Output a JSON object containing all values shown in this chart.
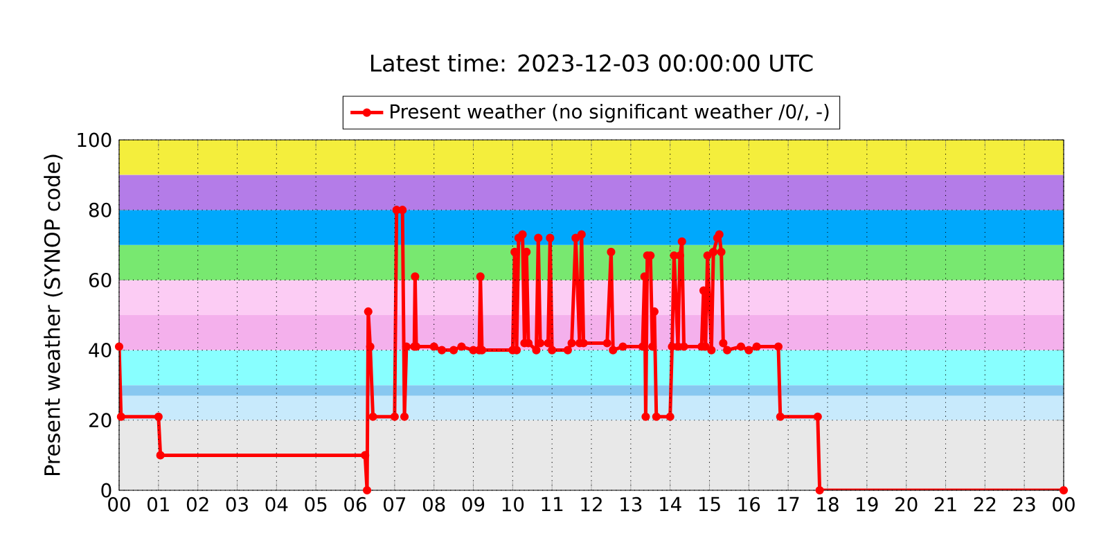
{
  "chart_data": {
    "type": "line",
    "title": "Latest time: 2023-12-03 00:00:00 UTC",
    "ylabel": "Present weather (SYNOP code)",
    "xlim": [
      0,
      24
    ],
    "ylim": [
      0,
      100
    ],
    "xticks": [
      {
        "value": 0,
        "label": "00"
      },
      {
        "value": 1,
        "label": "01"
      },
      {
        "value": 2,
        "label": "02"
      },
      {
        "value": 3,
        "label": "03"
      },
      {
        "value": 4,
        "label": "04"
      },
      {
        "value": 5,
        "label": "05"
      },
      {
        "value": 6,
        "label": "06"
      },
      {
        "value": 7,
        "label": "07"
      },
      {
        "value": 8,
        "label": "08"
      },
      {
        "value": 9,
        "label": "09"
      },
      {
        "value": 10,
        "label": "10"
      },
      {
        "value": 11,
        "label": "11"
      },
      {
        "value": 12,
        "label": "12"
      },
      {
        "value": 13,
        "label": "13"
      },
      {
        "value": 14,
        "label": "14"
      },
      {
        "value": 15,
        "label": "15"
      },
      {
        "value": 16,
        "label": "16"
      },
      {
        "value": 17,
        "label": "17"
      },
      {
        "value": 18,
        "label": "18"
      },
      {
        "value": 19,
        "label": "19"
      },
      {
        "value": 20,
        "label": "20"
      },
      {
        "value": 21,
        "label": "21"
      },
      {
        "value": 22,
        "label": "22"
      },
      {
        "value": 23,
        "label": "23"
      },
      {
        "value": 24,
        "label": "00"
      }
    ],
    "yticks": [
      0,
      20,
      40,
      60,
      80,
      100
    ],
    "grid": true,
    "legend": "top",
    "marker": "circle",
    "line_style": "solid",
    "bands": [
      {
        "axis": "y",
        "from": 0,
        "to": 20,
        "color": "#e8e8e8"
      },
      {
        "axis": "y",
        "from": 20,
        "to": 27,
        "color": "#c8eafc"
      },
      {
        "axis": "y",
        "from": 27,
        "to": 30,
        "color": "#88c8f0"
      },
      {
        "axis": "y",
        "from": 30,
        "to": 40,
        "color": "#88ffff"
      },
      {
        "axis": "y",
        "from": 40,
        "to": 50,
        "color": "#f4b0ec"
      },
      {
        "axis": "y",
        "from": 50,
        "to": 60,
        "color": "#fcccf4"
      },
      {
        "axis": "y",
        "from": 60,
        "to": 70,
        "color": "#78e870"
      },
      {
        "axis": "y",
        "from": 70,
        "to": 80,
        "color": "#00a8fc"
      },
      {
        "axis": "y",
        "from": 80,
        "to": 90,
        "color": "#b47ce8"
      },
      {
        "axis": "y",
        "from": 90,
        "to": 100,
        "color": "#f4ee3c"
      }
    ],
    "series": [
      {
        "name": "Present weather (no significant weather /0/, -)",
        "color": "#ff0000",
        "x": [
          0.0,
          0.05,
          1.0,
          1.05,
          6.25,
          6.3,
          6.33,
          6.38,
          6.45,
          7.0,
          7.05,
          7.2,
          7.25,
          7.3,
          7.5,
          7.52,
          7.55,
          8.0,
          8.2,
          8.5,
          8.7,
          9.0,
          9.15,
          9.18,
          9.22,
          10.0,
          10.05,
          10.1,
          10.15,
          10.25,
          10.3,
          10.35,
          10.4,
          10.6,
          10.65,
          10.7,
          10.9,
          10.95,
          11.0,
          11.4,
          11.5,
          11.6,
          11.7,
          11.75,
          11.8,
          12.4,
          12.5,
          12.55,
          12.8,
          13.3,
          13.35,
          13.38,
          13.42,
          13.5,
          13.55,
          13.6,
          13.65,
          14.0,
          14.05,
          14.1,
          14.2,
          14.25,
          14.3,
          14.35,
          14.8,
          14.85,
          14.9,
          14.95,
          15.05,
          15.1,
          15.2,
          15.25,
          15.3,
          15.35,
          15.45,
          15.8,
          16.0,
          16.2,
          16.75,
          16.8,
          17.75,
          17.8,
          24.0
        ],
        "values": [
          41,
          21,
          21,
          10,
          10,
          0,
          51,
          41,
          21,
          21,
          80,
          80,
          21,
          41,
          41,
          61,
          41,
          41,
          40,
          40,
          41,
          40,
          40,
          61,
          40,
          40,
          68,
          40,
          72,
          73,
          42,
          68,
          42,
          40,
          72,
          42,
          42,
          72,
          40,
          40,
          42,
          72,
          42,
          73,
          42,
          42,
          68,
          40,
          41,
          41,
          61,
          21,
          67,
          67,
          41,
          51,
          21,
          21,
          41,
          67,
          41,
          67,
          71,
          41,
          41,
          57,
          41,
          67,
          40,
          68,
          72,
          73,
          68,
          42,
          40,
          41,
          40,
          41,
          41,
          21,
          21,
          0,
          0
        ]
      }
    ]
  }
}
